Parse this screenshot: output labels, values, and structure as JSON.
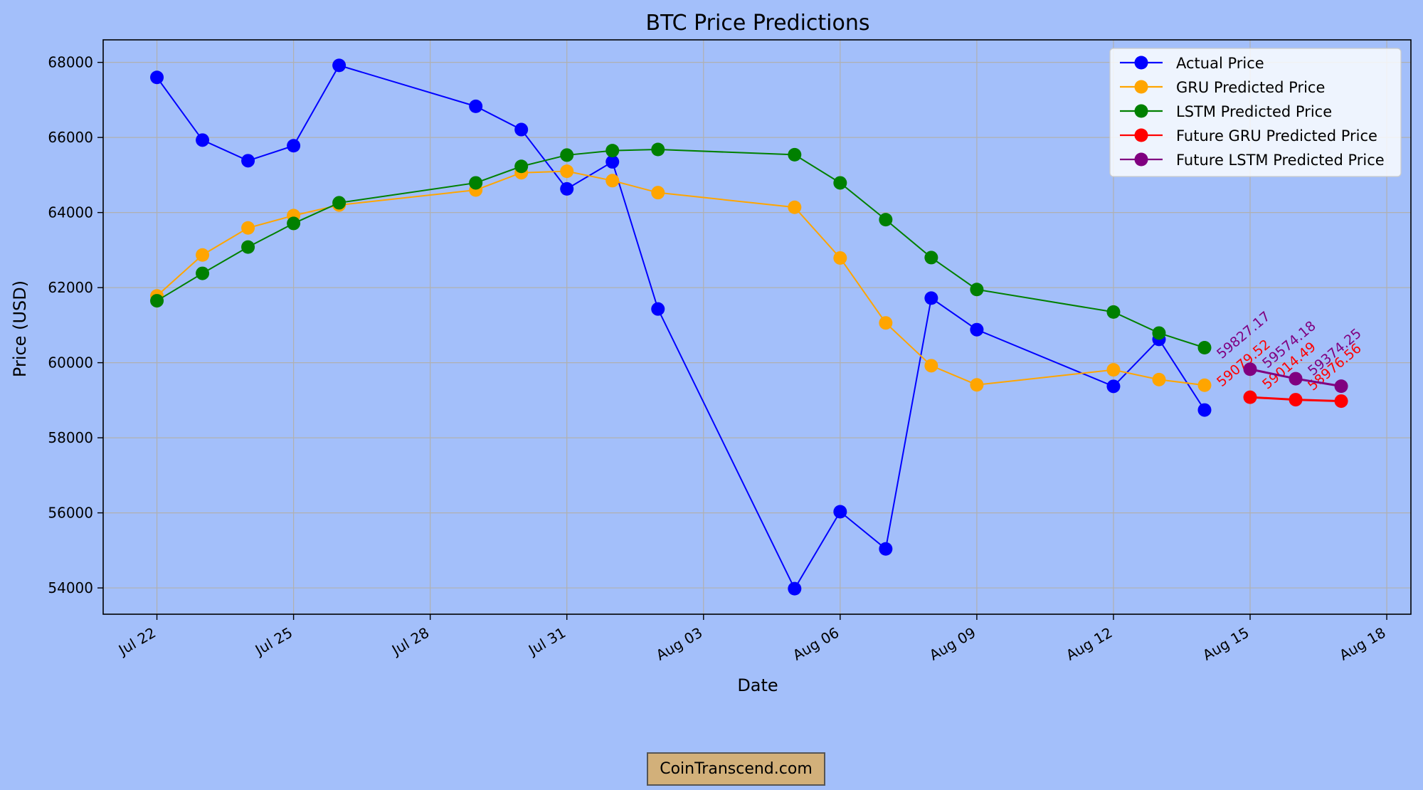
{
  "chart_data": {
    "type": "line",
    "title": "BTC Price Predictions",
    "xlabel": "Date",
    "ylabel": "Price (USD)",
    "grid": true,
    "legend_position": "top-right",
    "x_axis": {
      "start_date": "2024-07-20",
      "date_range_days": [
        0.82,
        29.53
      ],
      "ticks": [
        {
          "label": "Jul 22",
          "day": 2
        },
        {
          "label": "Jul 25",
          "day": 5
        },
        {
          "label": "Jul 28",
          "day": 8
        },
        {
          "label": "Jul 31",
          "day": 11
        },
        {
          "label": "Aug 03",
          "day": 14
        },
        {
          "label": "Aug 06",
          "day": 17
        },
        {
          "label": "Aug 09",
          "day": 20
        },
        {
          "label": "Aug 12",
          "day": 23
        },
        {
          "label": "Aug 15",
          "day": 26
        },
        {
          "label": "Aug 18",
          "day": 29
        }
      ]
    },
    "y_axis": {
      "range": [
        53300,
        68600
      ],
      "ticks": [
        54000,
        56000,
        58000,
        60000,
        62000,
        64000,
        66000,
        68000
      ]
    },
    "series": [
      {
        "name": "Actual Price",
        "color": "#0000ff",
        "days": [
          2,
          3,
          4,
          5,
          6,
          9,
          10,
          11,
          12,
          13,
          16,
          17,
          18,
          19,
          20,
          23,
          24,
          25
        ],
        "values": [
          67600,
          65930,
          65380,
          65780,
          67920,
          66830,
          66210,
          64630,
          65350,
          61430,
          53980,
          56030,
          55040,
          61720,
          60880,
          59370,
          60620,
          58740
        ]
      },
      {
        "name": "GRU Predicted Price",
        "color": "#ffa500",
        "days": [
          2,
          3,
          4,
          5,
          6,
          9,
          10,
          11,
          12,
          13,
          16,
          17,
          18,
          19,
          20,
          23,
          24,
          25
        ],
        "values": [
          61780,
          62870,
          63590,
          63920,
          64200,
          64600,
          65060,
          65100,
          64850,
          64530,
          64140,
          62790,
          61060,
          59920,
          59410,
          59810,
          59550,
          59400
        ]
      },
      {
        "name": "LSTM Predicted Price",
        "color": "#008000",
        "days": [
          2,
          3,
          4,
          5,
          6,
          9,
          10,
          11,
          12,
          13,
          16,
          17,
          18,
          19,
          20,
          23,
          24,
          25
        ],
        "values": [
          61650,
          62380,
          63080,
          63710,
          64260,
          64790,
          65230,
          65530,
          65650,
          65680,
          65540,
          64790,
          63810,
          62800,
          61950,
          61350,
          60790,
          60400
        ]
      },
      {
        "name": "Future GRU Predicted Price",
        "color": "#ff0000",
        "days": [
          26,
          27,
          28
        ],
        "values": [
          59079.52,
          59014.49,
          58976.56
        ],
        "value_labels": [
          "59079.52",
          "59014.49",
          "58976.56"
        ]
      },
      {
        "name": "Future LSTM Predicted Price",
        "color": "#800080",
        "days": [
          26,
          27,
          28
        ],
        "values": [
          59827.17,
          59574.18,
          59374.25
        ],
        "value_labels": [
          "59827.17",
          "59574.18",
          "59374.25"
        ]
      }
    ]
  },
  "watermark": "CoinTranscend.com"
}
